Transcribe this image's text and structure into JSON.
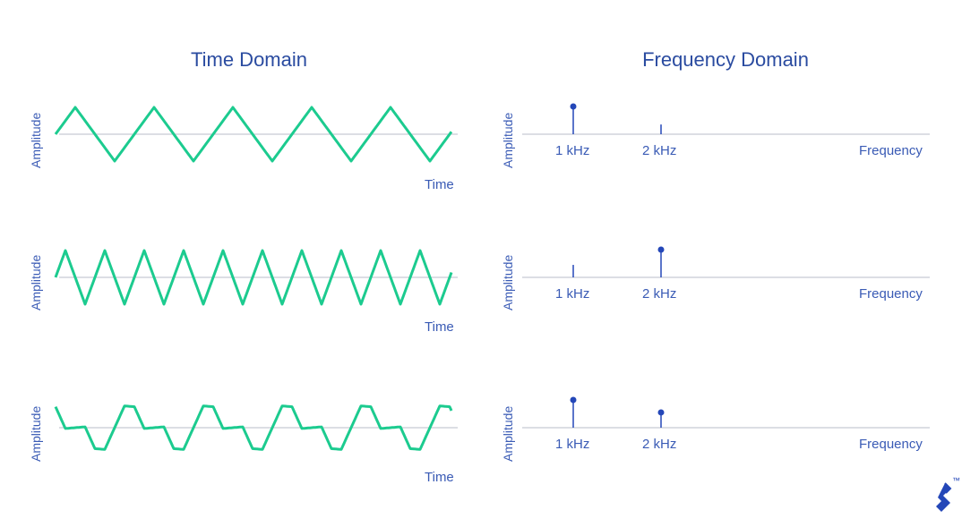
{
  "titles": {
    "time": "Time Domain",
    "freq": "Frequency Domain"
  },
  "axis": {
    "amplitude": "Amplitude",
    "time": "Time",
    "frequency": "Frequency"
  },
  "tick_labels": {
    "f1": "1 kHz",
    "f2": "2 kHz"
  },
  "colors": {
    "wave": "#1ccb8f",
    "axis": "#b8bcc8",
    "stem": "#2447b8",
    "text": "#3a5bb5",
    "title": "#2a4ba0"
  },
  "rows": [
    {
      "wave": "1 kHz triangle",
      "spectrum": {
        "f1": 1.0,
        "f2": 0.35
      }
    },
    {
      "wave": "2 kHz triangle",
      "spectrum": {
        "f1": 0.45,
        "f2": 1.0
      }
    },
    {
      "wave": "1 kHz + 2 kHz sum",
      "spectrum": {
        "f1": 1.0,
        "f2": 0.55
      }
    }
  ],
  "logo": {
    "icon": "toptal-logo-icon",
    "mark": "™"
  }
}
